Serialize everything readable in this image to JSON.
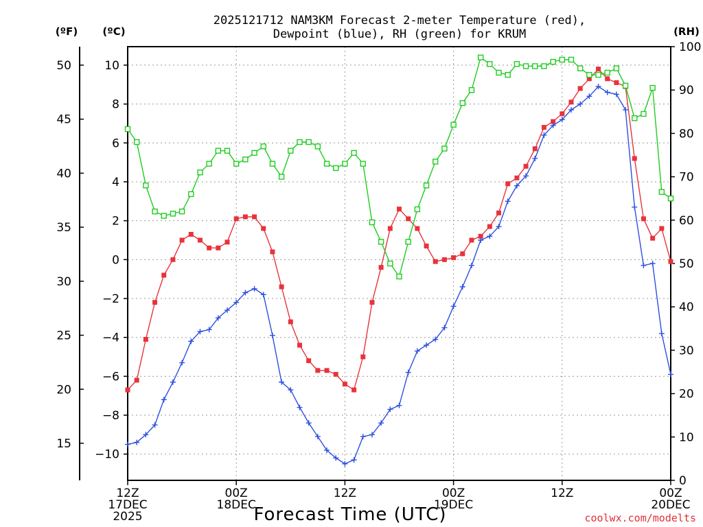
{
  "chart_data": {
    "type": "line",
    "title_line1": "2025121712 NAM3KM Forecast 2-meter Temperature (red),",
    "title_line2": "Dewpoint (blue), RH (green) for KRUM",
    "xlabel": "Forecast Time (UTC)",
    "credit": "coolwx.com/modelts",
    "units": {
      "fahrenheit": "(ºF)",
      "celsius": "(ºC)",
      "rh": "(RH)"
    },
    "celsius_ticks": [
      "10",
      "8",
      "6",
      "4",
      "2",
      "0",
      "−2",
      "−4",
      "−6",
      "−8",
      "−10"
    ],
    "fahrenheit_ticks": [
      "50",
      "45",
      "40",
      "35",
      "30",
      "25",
      "20",
      "15"
    ],
    "rh_ticks": [
      "100",
      "90",
      "80",
      "70",
      "60",
      "50",
      "40",
      "30",
      "20",
      "10",
      "0"
    ],
    "x_tick_labels": [
      {
        "lines": [
          "12Z",
          "17DEC",
          "2025"
        ],
        "hour": 0
      },
      {
        "lines": [
          "00Z",
          "18DEC"
        ],
        "hour": 12
      },
      {
        "lines": [
          "12Z"
        ],
        "hour": 24
      },
      {
        "lines": [
          "00Z",
          "19DEC"
        ],
        "hour": 36
      },
      {
        "lines": [
          "12Z"
        ],
        "hour": 48
      },
      {
        "lines": [
          "00Z",
          "20DEC"
        ],
        "hour": 60
      }
    ],
    "ylim_celsius": [
      -11.35,
      10.95
    ],
    "ylim_rh": [
      0,
      100
    ],
    "xlim_hours": [
      0,
      60
    ],
    "series": [
      {
        "name": "Temperature",
        "color": "#e8333b",
        "marker": "filled-square",
        "unit": "C",
        "values": [
          -6.7,
          -6.2,
          -4.1,
          -2.2,
          -0.8,
          0.0,
          1.0,
          1.3,
          1.0,
          0.6,
          0.6,
          0.9,
          2.1,
          2.2,
          2.2,
          1.6,
          0.4,
          -1.4,
          -3.2,
          -4.4,
          -5.2,
          -5.7,
          -5.7,
          -5.9,
          -6.4,
          -6.7,
          -5.0,
          -2.2,
          -0.4,
          1.6,
          2.6,
          2.1,
          1.6,
          0.7,
          -0.1,
          0.0,
          0.1,
          0.3,
          1.0,
          1.2,
          1.7,
          2.4,
          3.9,
          4.2,
          4.8,
          5.7,
          6.8,
          7.1,
          7.5,
          8.1,
          8.8,
          9.3,
          9.8,
          9.3,
          9.1,
          8.9,
          5.2,
          2.1,
          1.1,
          1.6,
          -0.1
        ]
      },
      {
        "name": "Dewpoint",
        "color": "#2b4fe0",
        "marker": "plus",
        "unit": "C",
        "values": [
          -9.5,
          -9.4,
          -9.0,
          -8.5,
          -7.2,
          -6.3,
          -5.3,
          -4.2,
          -3.7,
          -3.6,
          -3.0,
          -2.6,
          -2.2,
          -1.7,
          -1.5,
          -1.8,
          -3.9,
          -6.3,
          -6.7,
          -7.6,
          -8.4,
          -9.1,
          -9.8,
          -10.2,
          -10.5,
          -10.3,
          -9.1,
          -9.0,
          -8.4,
          -7.7,
          -7.5,
          -5.8,
          -4.7,
          -4.4,
          -4.1,
          -3.5,
          -2.4,
          -1.4,
          -0.3,
          1.0,
          1.2,
          1.7,
          3.0,
          3.8,
          4.3,
          5.2,
          6.4,
          6.9,
          7.2,
          7.7,
          8.0,
          8.4,
          8.9,
          8.6,
          8.5,
          7.7,
          2.7,
          -0.3,
          -0.2,
          -3.8,
          -5.9
        ]
      },
      {
        "name": "RH",
        "color": "#1fcc1f",
        "marker": "open-square",
        "unit": "%",
        "values": [
          81,
          78,
          68,
          62,
          61,
          61.5,
          62,
          66,
          71,
          73,
          76,
          76,
          73,
          74,
          75.5,
          77,
          73,
          70,
          76,
          78,
          78,
          77,
          73,
          72,
          73,
          75.5,
          73,
          59.5,
          55,
          50,
          47,
          55,
          62.5,
          68,
          73.5,
          76.5,
          82,
          87,
          90,
          97.5,
          96,
          94,
          93.5,
          96,
          95.5,
          95.5,
          95.5,
          96.5,
          97,
          97,
          95,
          93.5,
          93.5,
          94,
          95,
          91,
          83.5,
          84.5,
          90.5,
          66.5,
          65
        ]
      }
    ]
  }
}
